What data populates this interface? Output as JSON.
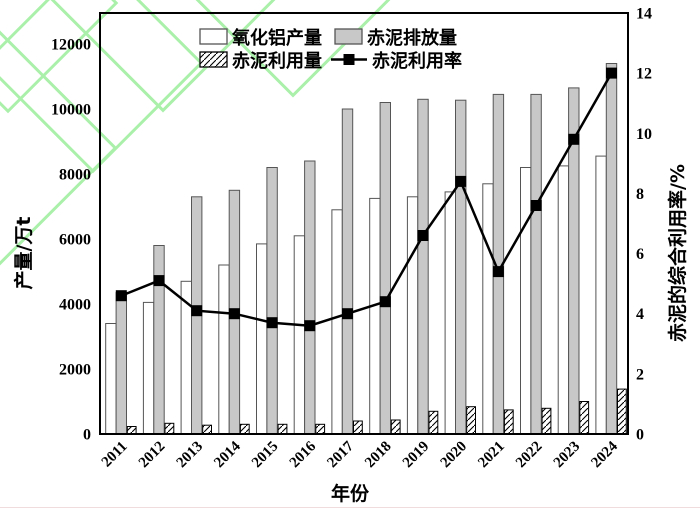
{
  "chart_data": {
    "type": "bar",
    "title": "",
    "xlabel": "年份",
    "ylabel_left": "产量/万t",
    "ylabel_right": "赤泥的综合利用率/%",
    "categories": [
      "2011",
      "2012",
      "2013",
      "2014",
      "2015",
      "2016",
      "2017",
      "2018",
      "2019",
      "2020",
      "2021",
      "2022",
      "2023",
      "2024"
    ],
    "series": [
      {
        "key": "alumina-output",
        "name": "氧化铝产量",
        "type": "bar",
        "style": "white",
        "axis": "left",
        "values": [
          3400,
          4050,
          4700,
          5200,
          5850,
          6100,
          6900,
          7250,
          7300,
          7450,
          7700,
          8200,
          8250,
          8550
        ]
      },
      {
        "key": "red-mud-discharge",
        "name": "赤泥排放量",
        "type": "bar",
        "style": "gray",
        "axis": "left",
        "values": [
          4350,
          5800,
          7300,
          7500,
          8200,
          8400,
          10000,
          10200,
          10300,
          10270,
          10450,
          10450,
          10650,
          11400
        ]
      },
      {
        "key": "red-mud-utilized",
        "name": "赤泥利用量",
        "type": "bar",
        "style": "hatched",
        "axis": "left",
        "values": [
          230,
          330,
          270,
          300,
          300,
          300,
          400,
          430,
          700,
          840,
          740,
          790,
          1000,
          1380
        ]
      },
      {
        "key": "utilization-rate",
        "name": "赤泥利用率",
        "type": "line",
        "style": "line-square",
        "axis": "right",
        "values": [
          4.6,
          5.1,
          4.1,
          4.0,
          3.7,
          3.6,
          4.0,
          4.4,
          6.6,
          8.4,
          5.4,
          7.6,
          9.8,
          12.0
        ]
      }
    ],
    "ylim_left": [
      0,
      13000
    ],
    "ylim_right": [
      0,
      14
    ],
    "yticks_left": [
      0,
      2000,
      4000,
      6000,
      8000,
      10000,
      12000
    ],
    "yticks_right": [
      0,
      2,
      4,
      6,
      8,
      10,
      12,
      14
    ],
    "grid": false,
    "legend_position": "top-center-inside",
    "colors": {
      "bar_white": "#ffffff",
      "bar_gray": "#c8c8c8",
      "bar_stroke": "#555555",
      "hatch_stroke": "#000000",
      "line": "#000000",
      "decoration_green": "#aaf0aa"
    }
  }
}
